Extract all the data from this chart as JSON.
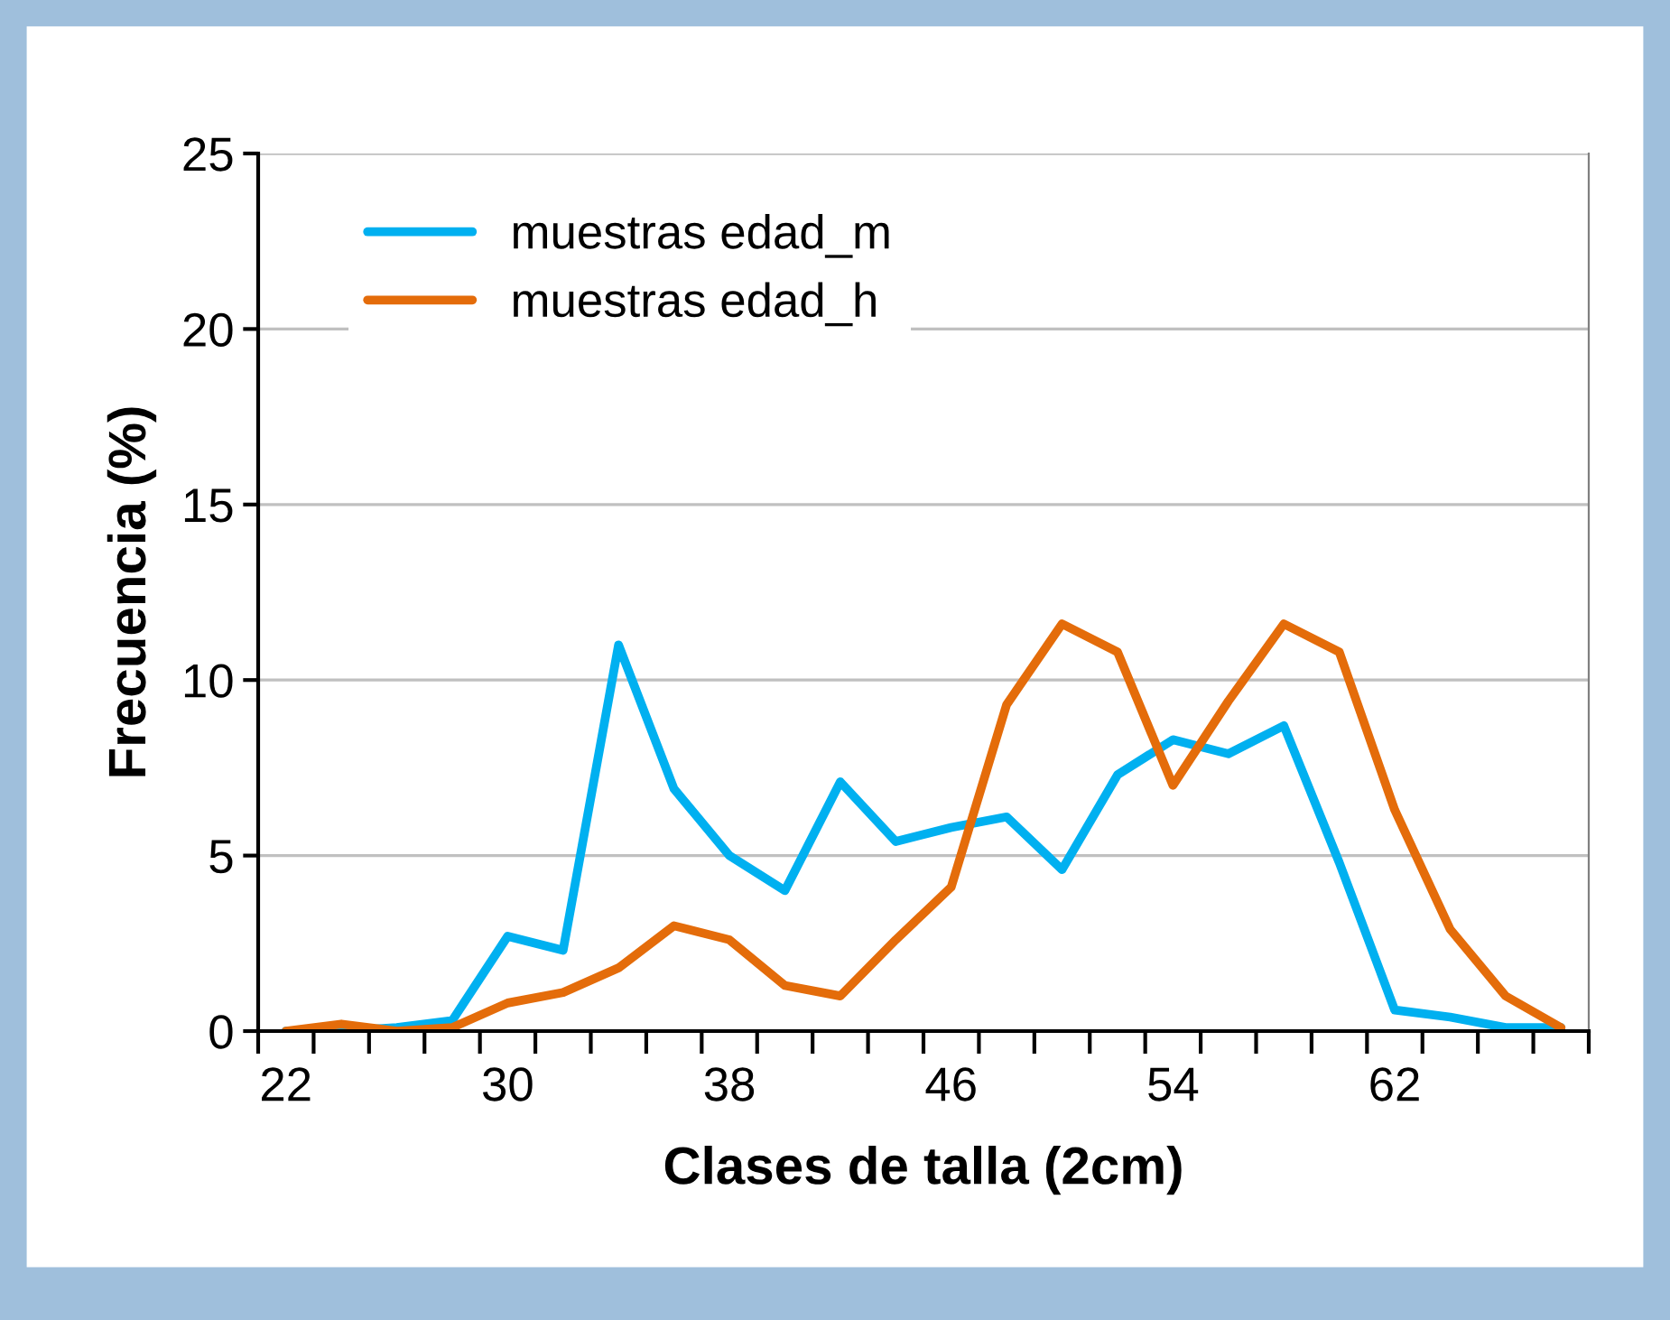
{
  "chart_data": {
    "type": "line",
    "xlabel": "Clases de talla (2cm)",
    "ylabel": "Frecuencia (%)",
    "categories": [
      "22",
      null,
      null,
      null,
      "30",
      null,
      null,
      null,
      "38",
      null,
      null,
      null,
      "46",
      null,
      null,
      null,
      "54",
      null,
      null,
      null,
      "62",
      null,
      null,
      null
    ],
    "series": [
      {
        "name": "muestras edad_m",
        "color": "#00b0f0",
        "values": [
          0,
          0,
          0.1,
          0.3,
          2.7,
          2.3,
          11.0,
          6.9,
          5.0,
          4.0,
          7.1,
          5.4,
          5.8,
          6.1,
          4.6,
          7.3,
          8.3,
          7.9,
          8.7,
          4.8,
          0.6,
          0.4,
          0.1,
          0.1
        ]
      },
      {
        "name": "muestras edad_h",
        "color": "#e46c0a",
        "values": [
          0,
          0.2,
          0,
          0.1,
          0.8,
          1.1,
          1.8,
          3.0,
          2.6,
          1.3,
          1.0,
          2.6,
          4.1,
          9.3,
          11.6,
          10.8,
          7.0,
          9.4,
          11.6,
          10.8,
          6.3,
          2.9,
          1.0,
          0.1
        ]
      }
    ],
    "ylim": [
      0,
      25
    ],
    "yticks": [
      0,
      5,
      10,
      15,
      20,
      25
    ],
    "grid": "y",
    "legend": "top left",
    "marker": "none",
    "line_style": "solid"
  }
}
